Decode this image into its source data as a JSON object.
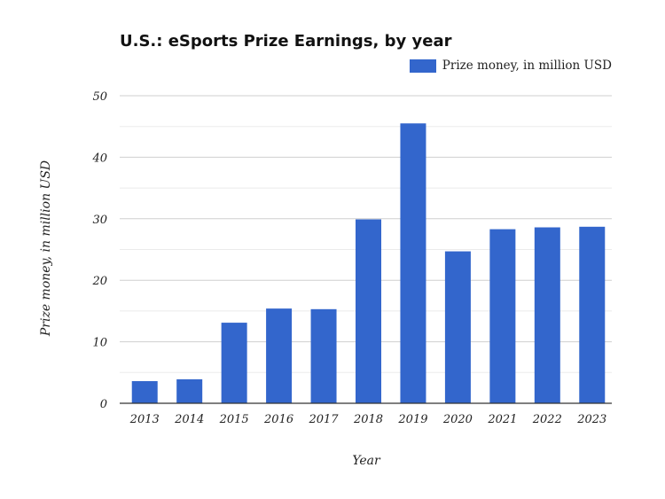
{
  "chart_data": {
    "type": "bar",
    "title": "U.S.: eSports Prize Earnings, by year",
    "xlabel": "Year",
    "ylabel": "Prize money, in million USD",
    "categories": [
      "2013",
      "2014",
      "2015",
      "2016",
      "2017",
      "2018",
      "2019",
      "2020",
      "2021",
      "2022",
      "2023"
    ],
    "series": [
      {
        "name": "Prize money, in million USD",
        "values": [
          3.6,
          3.9,
          13.1,
          15.4,
          15.3,
          29.9,
          45.5,
          24.7,
          28.3,
          28.6,
          28.7
        ],
        "color": "#3366cc"
      }
    ],
    "ylim": [
      0,
      50
    ],
    "yticks": [
      0,
      10,
      20,
      30,
      40,
      50
    ],
    "grid": true,
    "legend": "top-right"
  }
}
